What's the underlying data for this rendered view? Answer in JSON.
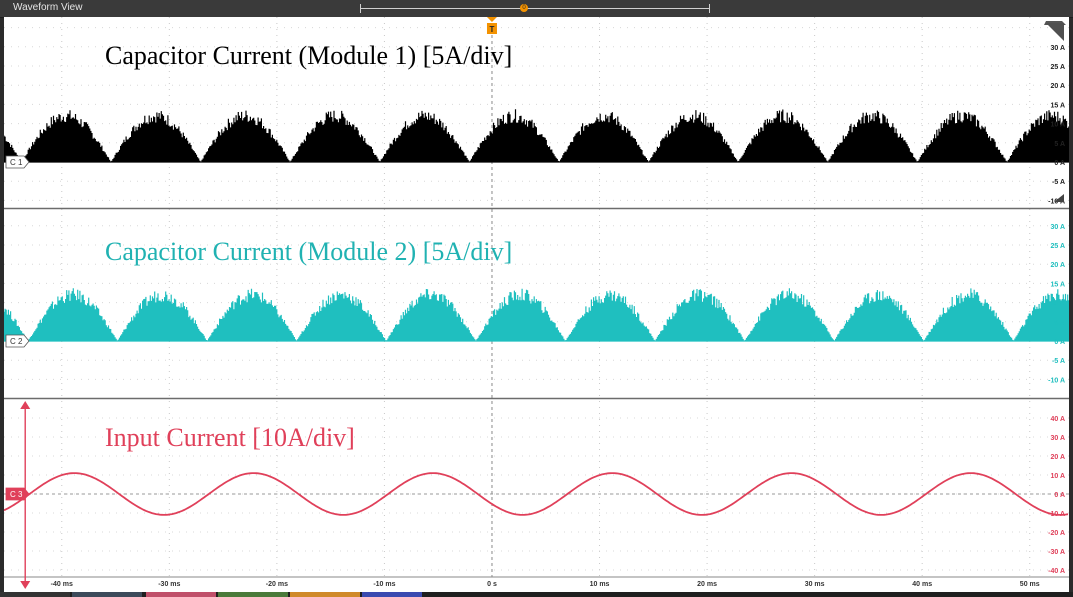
{
  "window": {
    "title": "Waveform View"
  },
  "trigger": {
    "label": "T",
    "position_label": "0"
  },
  "panels": [
    {
      "channel": "C1",
      "title": "Capacitor Current (Module 1) [5A/div]",
      "color": "#000000",
      "title_color": "#000000",
      "scale": [
        "30 A",
        "25 A",
        "20 A",
        "15 A",
        "10 A",
        "5 A",
        "0 A",
        "-5 A",
        "-10 A"
      ],
      "unit_per_div": 5
    },
    {
      "channel": "C2",
      "title": "Capacitor Current (Module 2) [5A/div]",
      "color": "#1fbfbf",
      "title_color": "#20b2b2",
      "scale": [
        "30 A",
        "25 A",
        "20 A",
        "15 A",
        "10 A",
        "5 A",
        "0 A",
        "-5 A",
        "-10 A"
      ],
      "unit_per_div": 5
    },
    {
      "channel": "C3",
      "title": "Input Current [10A/div]",
      "color": "#e0405a",
      "title_color": "#e0405a",
      "scale": [
        "40 A",
        "30 A",
        "20 A",
        "10 A",
        "0 A",
        "-10 A",
        "-20 A",
        "-30 A",
        "-40 A"
      ],
      "unit_per_div": 10
    }
  ],
  "time_axis": {
    "labels": [
      "-40 ms",
      "-30 ms",
      "-20 ms",
      "-10 ms",
      "0 s",
      "10 ms",
      "20 ms",
      "30 ms",
      "40 ms",
      "50 ms"
    ]
  },
  "chart_data": {
    "type": "line",
    "xlabel": "",
    "ylabel": "",
    "x_unit": "ms",
    "xlim": [
      -45,
      53
    ],
    "series": [
      {
        "name": "C1",
        "signal": "rectified sine with switching ripple",
        "peak": 12.5,
        "period_ms": 8.33
      },
      {
        "name": "C2",
        "signal": "rectified sine with switching ripple",
        "peak": 12.5,
        "period_ms": 8.33
      },
      {
        "name": "C3",
        "signal": "sine",
        "amplitude": 11,
        "period_ms": 16.67,
        "zero_crossing_ms": -43
      }
    ]
  }
}
